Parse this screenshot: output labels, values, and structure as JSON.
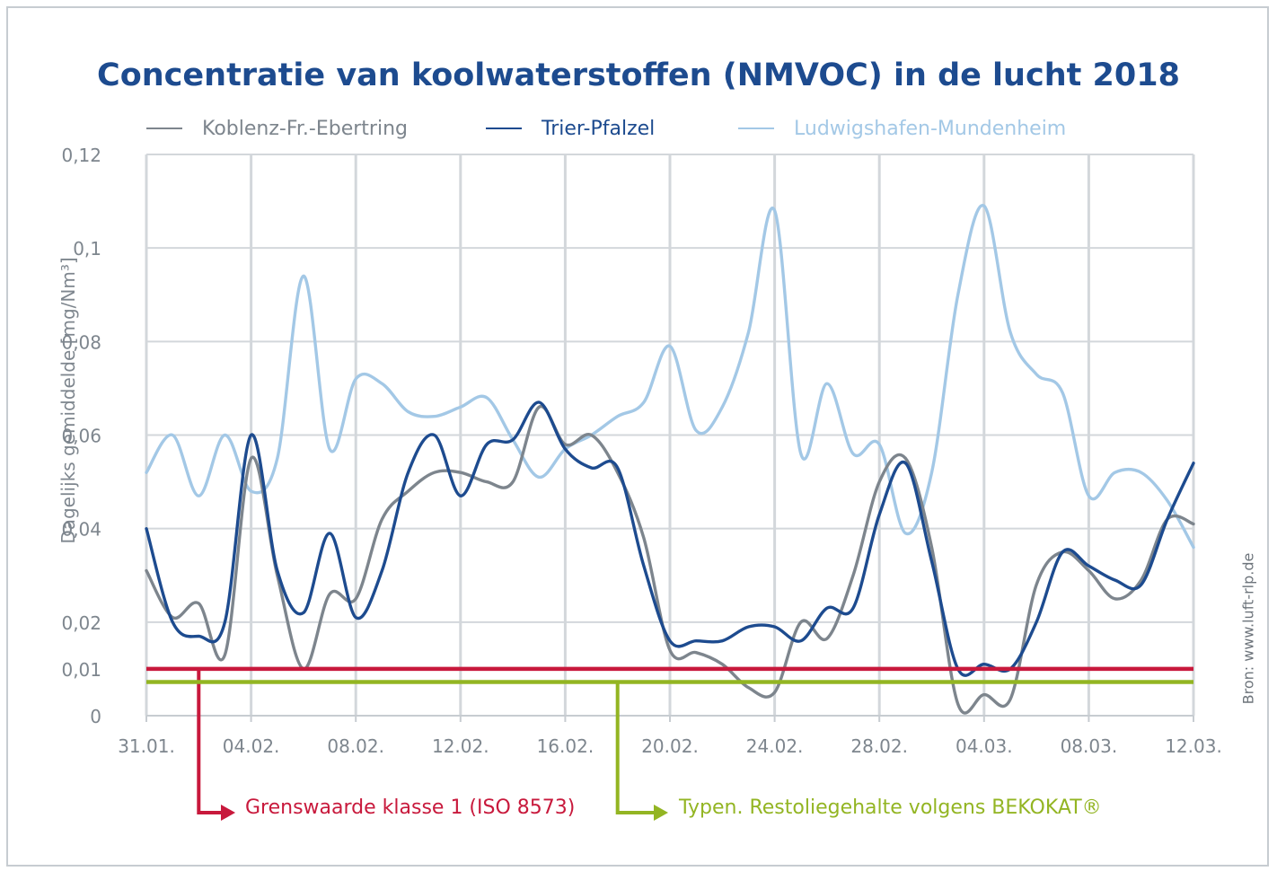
{
  "chart_data": {
    "type": "line",
    "title": "Concentratie van koolwaterstoffen (NMVOC) in de lucht 2018",
    "ylabel": "Dagelijks gemiddelde  [mg/Nm³]",
    "xlabel": "",
    "x": [
      "31.01.",
      "01.02.",
      "02.02.",
      "03.02.",
      "04.02.",
      "05.02.",
      "06.02.",
      "07.02.",
      "08.02.",
      "09.02.",
      "10.02.",
      "11.02.",
      "12.02.",
      "13.02.",
      "14.02.",
      "15.02.",
      "16.02.",
      "17.02.",
      "18.02.",
      "19.02.",
      "20.02.",
      "21.02.",
      "22.02.",
      "23.02.",
      "24.02.",
      "25.02.",
      "26.02.",
      "27.02.",
      "28.02.",
      "01.03.",
      "02.03.",
      "03.03.",
      "04.03.",
      "05.03.",
      "06.03.",
      "07.03.",
      "08.03.",
      "09.03.",
      "10.03.",
      "11.03.",
      "12.03."
    ],
    "x_tick_labels": [
      "31.01.",
      "04.02.",
      "08.02.",
      "12.02.",
      "16.02.",
      "20.02.",
      "24.02.",
      "28.02.",
      "04.03.",
      "08.03.",
      "12.03."
    ],
    "y_tick_labels": [
      "0",
      "0,01",
      "0,02",
      "0,04",
      "0,06",
      "0,08",
      "0,1",
      "0,12"
    ],
    "y_tick_values": [
      0,
      0.01,
      0.02,
      0.04,
      0.06,
      0.08,
      0.1,
      0.12
    ],
    "ylim": [
      0,
      0.12
    ],
    "grid": true,
    "legend_position": "top",
    "series": [
      {
        "name": "Koblenz-Fr.-Ebertring",
        "color": "#7d858d",
        "values": [
          0.031,
          0.021,
          0.024,
          0.013,
          0.055,
          0.03,
          0.01,
          0.026,
          0.025,
          0.042,
          0.048,
          0.052,
          0.052,
          0.05,
          0.05,
          0.066,
          0.058,
          0.06,
          0.052,
          0.038,
          0.014,
          0.0135,
          0.011,
          0.006,
          0.005,
          0.02,
          0.0165,
          0.03,
          0.05,
          0.055,
          0.036,
          0.0025,
          0.0045,
          0.0035,
          0.028,
          0.035,
          0.031,
          0.025,
          0.029,
          0.042,
          0.041
        ]
      },
      {
        "name": "Trier-Pfalzel",
        "color": "#1d4b8f",
        "values": [
          0.04,
          0.02,
          0.017,
          0.02,
          0.06,
          0.031,
          0.022,
          0.039,
          0.021,
          0.031,
          0.052,
          0.06,
          0.047,
          0.058,
          0.059,
          0.067,
          0.057,
          0.053,
          0.053,
          0.032,
          0.016,
          0.016,
          0.016,
          0.019,
          0.019,
          0.016,
          0.023,
          0.023,
          0.043,
          0.054,
          0.033,
          0.01,
          0.011,
          0.01,
          0.02,
          0.035,
          0.032,
          0.029,
          0.028,
          0.042,
          0.054
        ]
      },
      {
        "name": "Ludwigshafen-Mundenheim",
        "color": "#a3c8e6",
        "values": [
          0.052,
          0.06,
          0.047,
          0.06,
          0.048,
          0.055,
          0.094,
          0.057,
          0.072,
          0.071,
          0.065,
          0.064,
          0.066,
          0.068,
          0.059,
          0.051,
          0.057,
          0.06,
          0.064,
          0.067,
          0.079,
          0.061,
          0.066,
          0.082,
          0.108,
          0.056,
          0.071,
          0.056,
          0.058,
          0.039,
          0.052,
          0.09,
          0.109,
          0.082,
          0.073,
          0.069,
          0.047,
          0.052,
          0.052,
          0.046,
          0.036
        ]
      }
    ],
    "reference_lines": [
      {
        "label": "Grenswaarde klasse 1 (ISO 8573)",
        "value": 0.01,
        "color": "#c8193c",
        "arrow_from_x": "02.02."
      },
      {
        "label": "Typen. Restoliegehalte volgens BEKOKAT®",
        "value": 0.0072,
        "color": "#93b523",
        "arrow_from_x": "18.02."
      }
    ]
  },
  "source_note": "Bron: www.luft-rlp.de"
}
